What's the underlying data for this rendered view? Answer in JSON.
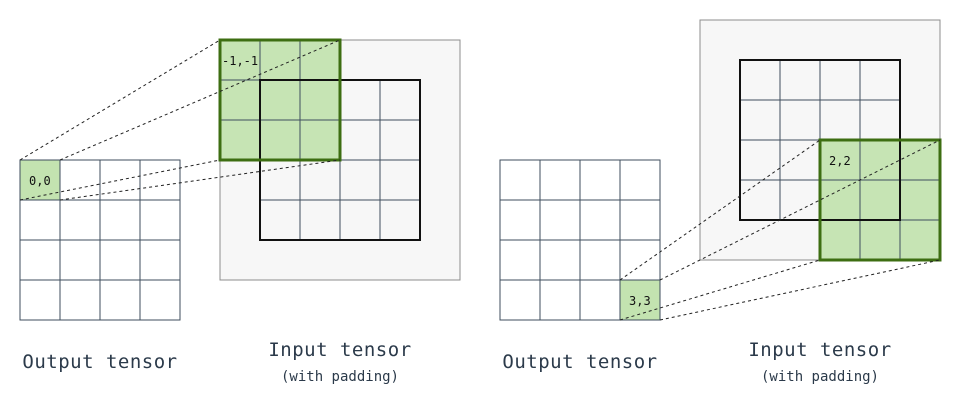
{
  "panels": [
    {
      "output_label": "Output tensor",
      "input_label": "Input tensor",
      "input_sublabel": "(with padding)",
      "output_cell_label": "0,0",
      "window_label": "-1,-1"
    },
    {
      "output_label": "Output tensor",
      "input_label": "Input tensor",
      "input_sublabel": "(with padding)",
      "output_cell_label": "3,3",
      "window_label": "2,2"
    }
  ],
  "colors": {
    "highlight_fill": "#c3e3b0",
    "highlight_stroke": "#3d6e12",
    "grid_line": "#3f4e5e",
    "padding_fill": "#f7f7f7",
    "padding_stroke": "#8c8c8c",
    "input_border": "#111111",
    "text": "#2b3a4a"
  }
}
